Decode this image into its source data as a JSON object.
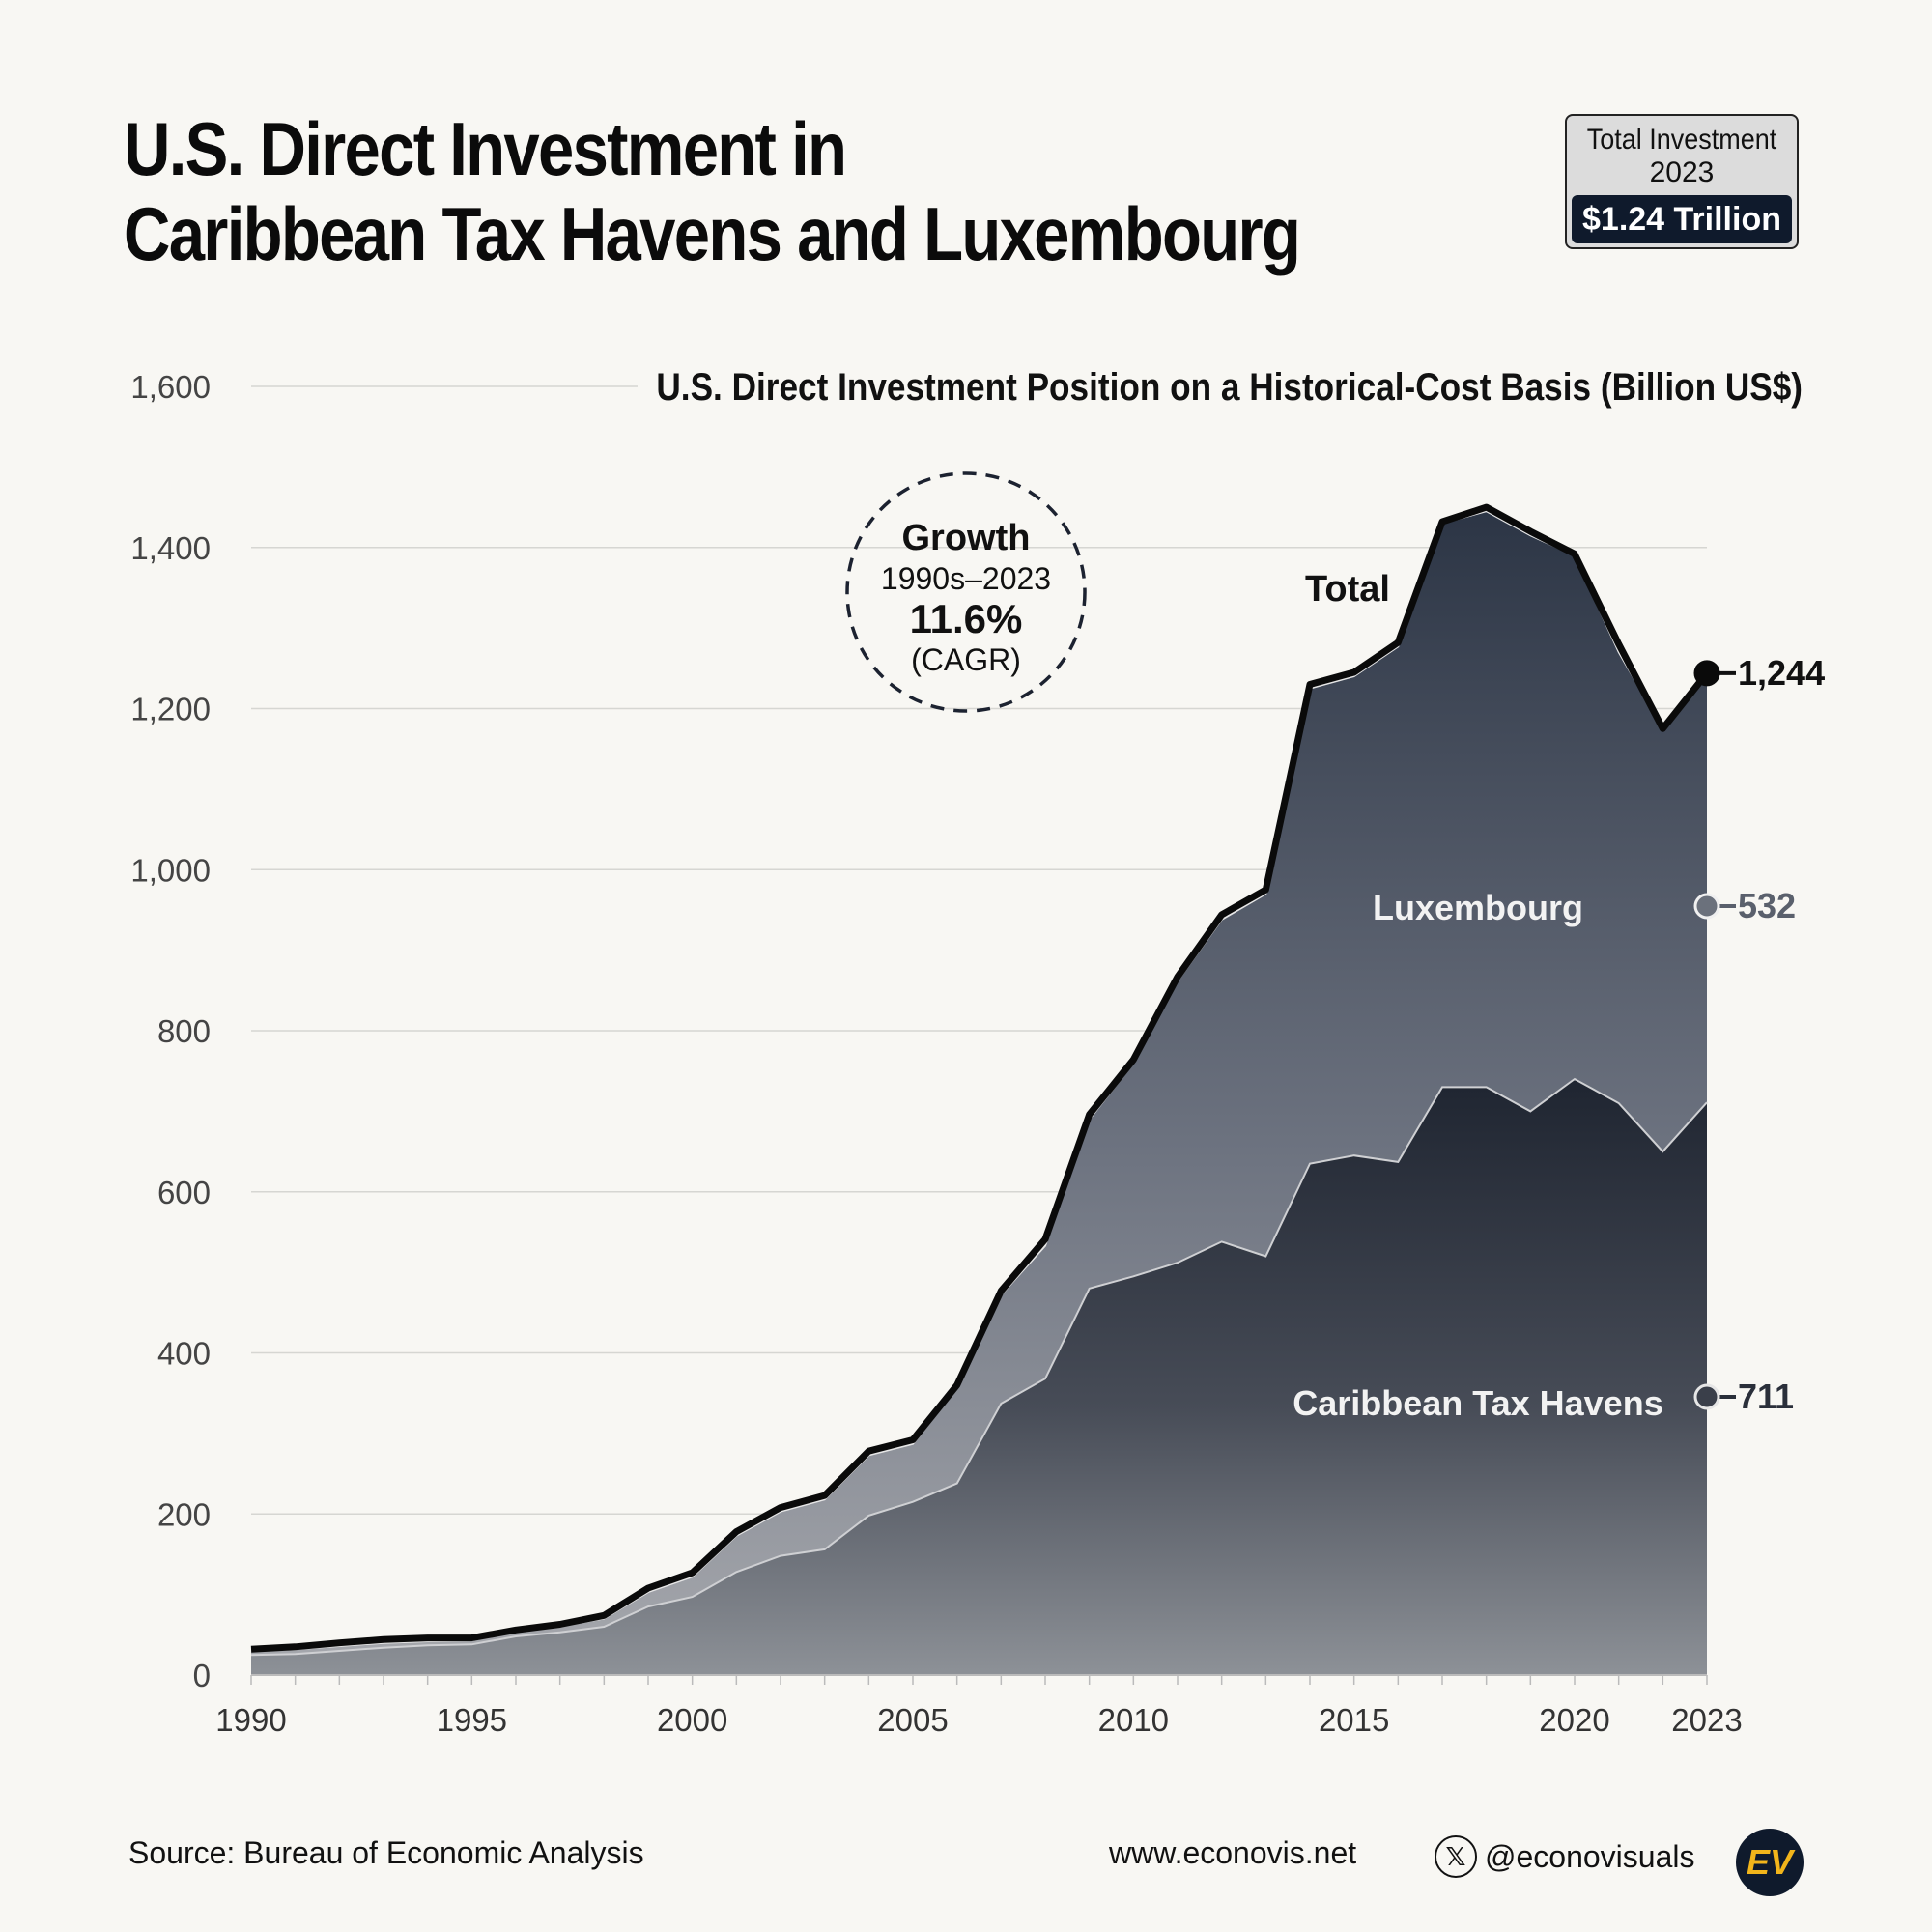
{
  "header": {
    "title_line1": "U.S. Direct Investment in",
    "title_line2": "Caribbean Tax Havens and Luxembourg"
  },
  "badge": {
    "label": "Total Investment",
    "year": "2023",
    "value": "$1.24 Trillion"
  },
  "growth": {
    "title": "Growth",
    "period": "1990s–2023",
    "rate": "11.6%",
    "note": "(CAGR)"
  },
  "footer": {
    "source": "Source: Bureau of Economic Analysis",
    "website": "www.econovis.net",
    "x_icon": "x-logo-icon",
    "handle": "@econovisuals",
    "logo_text": "EV"
  },
  "chart_data": {
    "type": "area",
    "title": "U.S. Direct Investment Position on a Historical-Cost Basis (Billion US$)",
    "x": [
      1990,
      1991,
      1992,
      1993,
      1994,
      1995,
      1996,
      1997,
      1998,
      1999,
      2000,
      2001,
      2002,
      2003,
      2004,
      2005,
      2006,
      2007,
      2008,
      2009,
      2010,
      2011,
      2012,
      2013,
      2014,
      2015,
      2016,
      2017,
      2018,
      2019,
      2020,
      2021,
      2022,
      2023
    ],
    "series": [
      {
        "name": "Caribbean Tax Havens",
        "label": "Caribbean Tax Havens",
        "end_label": "711",
        "color": "#3a3f4a",
        "values": [
          25,
          26,
          30,
          34,
          37,
          38,
          48,
          53,
          60,
          85,
          97,
          128,
          148,
          156,
          198,
          215,
          238,
          337,
          368,
          480,
          495,
          512,
          538,
          520,
          635,
          645,
          637,
          730,
          730,
          700,
          740,
          710,
          650,
          711
        ]
      },
      {
        "name": "Luxembourg",
        "label": "Luxembourg",
        "end_label": "532",
        "color": "#5f6674",
        "values": [
          5,
          6,
          6,
          6,
          5,
          5,
          6,
          8,
          10,
          18,
          25,
          45,
          55,
          62,
          75,
          72,
          118,
          135,
          165,
          210,
          265,
          350,
          400,
          450,
          590,
          595,
          640,
          700,
          715,
          715,
          650,
          560,
          525,
          532
        ]
      }
    ],
    "total": {
      "label": "Total",
      "end_label": "1,244",
      "values": [
        32,
        35,
        40,
        44,
        46,
        46,
        56,
        63,
        74,
        108,
        127,
        178,
        208,
        223,
        278,
        292,
        360,
        477,
        541,
        696,
        764,
        867,
        944,
        975,
        1230,
        1245,
        1282,
        1432,
        1450,
        1420,
        1392,
        1280,
        1175,
        1244
      ]
    },
    "yticks": [
      0,
      200,
      400,
      600,
      800,
      1000,
      1200,
      1400,
      1600
    ],
    "ytick_labels": [
      "0",
      "200",
      "400",
      "600",
      "800",
      "1,000",
      "1,200",
      "1,400",
      "1,600"
    ],
    "xticks": [
      1990,
      1995,
      2000,
      2005,
      2010,
      2015,
      2020,
      2023
    ],
    "ylim": [
      0,
      1600
    ],
    "xlim": [
      1990,
      2023
    ],
    "grid": true
  },
  "colors": {
    "background": "#f8f7f3",
    "total_line": "#0a0a0a",
    "navy": "#0f1a2c",
    "gold": "#f2b51b"
  }
}
